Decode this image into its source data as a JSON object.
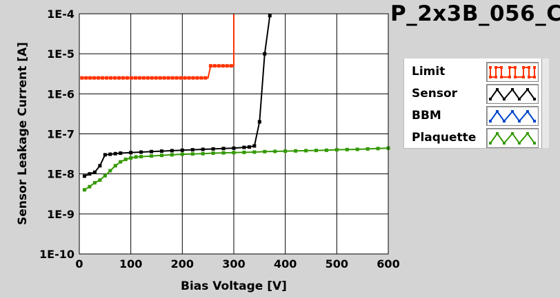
{
  "chart_data": {
    "type": "line",
    "title": "P_2x3B_056_C",
    "xlabel": "Bias Voltage [V]",
    "ylabel": "Sensor Leakage Current [A]",
    "xlim": [
      0,
      600
    ],
    "ylim": [
      1e-10,
      0.0001
    ],
    "y_scale": "log",
    "grid": true,
    "legend_position": "right",
    "x_ticks": [
      0,
      100,
      200,
      300,
      400,
      500,
      600
    ],
    "x_tick_labels": [
      "0",
      "100",
      "200",
      "300",
      "400",
      "500",
      "600"
    ],
    "y_ticks": [
      1e-10,
      1e-09,
      1e-08,
      1e-07,
      1e-06,
      1e-05,
      0.0001
    ],
    "y_tick_labels": [
      "1E-10",
      "1E-9",
      "1E-8",
      "1E-7",
      "1E-6",
      "1E-5",
      "1E-4"
    ],
    "series": [
      {
        "name": "Limit",
        "color": "#ff3300",
        "step": true,
        "x": [
          5,
          250,
          255,
          300,
          300
        ],
        "y": [
          2.5e-06,
          2.5e-06,
          5e-06,
          5e-06,
          0.0001
        ]
      },
      {
        "name": "Sensor",
        "color": "#000000",
        "step": false,
        "x": [
          10,
          20,
          30,
          40,
          50,
          60,
          70,
          80,
          100,
          120,
          140,
          160,
          180,
          200,
          220,
          240,
          260,
          280,
          300,
          320,
          330,
          340,
          350,
          360,
          370
        ],
        "y": [
          8.8e-09,
          1e-08,
          1.1e-08,
          1.6e-08,
          3e-08,
          3.1e-08,
          3.2e-08,
          3.3e-08,
          3.4e-08,
          3.5e-08,
          3.6e-08,
          3.7e-08,
          3.8e-08,
          3.9e-08,
          4e-08,
          4.1e-08,
          4.2e-08,
          4.3e-08,
          4.4e-08,
          4.6e-08,
          4.7e-08,
          5e-08,
          2e-07,
          1e-05,
          9e-05
        ]
      },
      {
        "name": "BBM",
        "color": "#0044cc",
        "step": false,
        "x": [],
        "y": []
      },
      {
        "name": "Plaquette",
        "color": "#339900",
        "step": false,
        "x": [
          10,
          20,
          30,
          40,
          50,
          60,
          70,
          80,
          90,
          100,
          110,
          120,
          140,
          160,
          180,
          200,
          220,
          240,
          260,
          280,
          300,
          320,
          340,
          360,
          380,
          400,
          420,
          440,
          460,
          480,
          500,
          520,
          540,
          560,
          580,
          600
        ],
        "y": [
          4e-09,
          4.8e-09,
          6e-09,
          7e-09,
          9e-09,
          1.2e-08,
          1.6e-08,
          2e-08,
          2.3e-08,
          2.5e-08,
          2.65e-08,
          2.7e-08,
          2.8e-08,
          2.9e-08,
          3e-08,
          3.1e-08,
          3.15e-08,
          3.2e-08,
          3.3e-08,
          3.35e-08,
          3.4e-08,
          3.45e-08,
          3.5e-08,
          3.6e-08,
          3.65e-08,
          3.7e-08,
          3.75e-08,
          3.8e-08,
          3.85e-08,
          3.9e-08,
          4e-08,
          4.05e-08,
          4.1e-08,
          4.2e-08,
          4.3e-08,
          4.4e-08
        ]
      }
    ]
  }
}
